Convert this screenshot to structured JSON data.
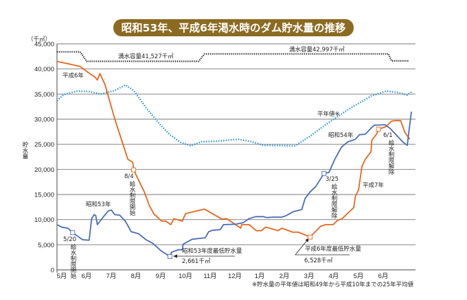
{
  "chart_data": {
    "type": "line",
    "title": "昭和53年、平成6年渇水時のダム貯水量の推移",
    "ylabel": "貯水量",
    "yunit": "（千㎥）",
    "ylim": [
      0,
      45000
    ],
    "yticks": [
      "0",
      "5,000",
      "10,000",
      "15,000",
      "20,000",
      "25,000",
      "30,000",
      "35,000",
      "40,000",
      "45,000"
    ],
    "xticks": [
      "5月",
      "6月",
      "7月",
      "8月",
      "9月",
      "10月",
      "11月",
      "12月",
      "1月",
      "2月",
      "3月",
      "4月",
      "5月",
      "6月"
    ],
    "grid": true,
    "colors": {
      "heisei": "#e8661a",
      "showa": "#4a6bb8",
      "average": "#1e8ad8",
      "capacity": "#111111",
      "title_bg": "#8b6a22"
    },
    "series": [
      {
        "key": "heisei",
        "style": "solid",
        "labels": [
          "平成6年",
          "平成7年"
        ],
        "points": [
          [
            "5/1",
            41500
          ],
          [
            "5/15",
            41000
          ],
          [
            "5/29",
            40500
          ],
          [
            "6/8",
            39400
          ],
          [
            "6/14",
            38700
          ],
          [
            "6/17",
            38400
          ],
          [
            "6/20",
            37800
          ],
          [
            "6/23",
            39100
          ],
          [
            "6/29",
            37000
          ],
          [
            "7/11",
            30100
          ],
          [
            "7/27",
            22000
          ],
          [
            "8/3",
            21400
          ],
          [
            "8/4",
            19900
          ],
          [
            "8/17",
            15500
          ],
          [
            "8/23",
            12800
          ],
          [
            "8/29",
            11000
          ],
          [
            "9/1",
            10800
          ],
          [
            "9/8",
            9700
          ],
          [
            "9/13",
            9700
          ],
          [
            "9/19",
            9000
          ],
          [
            "9/23",
            10200
          ],
          [
            "9/29",
            9900
          ],
          [
            "10/3",
            9700
          ],
          [
            "10/7",
            11200
          ],
          [
            "10/30",
            12100
          ],
          [
            "11/20",
            10200
          ],
          [
            "11/23",
            10100
          ],
          [
            "11/27",
            10200
          ],
          [
            "12/14",
            8300
          ],
          [
            "12/15",
            9000
          ],
          [
            "12/24",
            9000
          ],
          [
            "1/3",
            7800
          ],
          [
            "1/9",
            7800
          ],
          [
            "1/14",
            8500
          ],
          [
            "1/19",
            8300
          ],
          [
            "1/29",
            7800
          ],
          [
            "2/4",
            8300
          ],
          [
            "2/17",
            7500
          ],
          [
            "2/24",
            7500
          ],
          [
            "3/8",
            6528
          ],
          [
            "3/21",
            8700
          ],
          [
            "3/27",
            9000
          ],
          [
            "4/6",
            9000
          ],
          [
            "4/11",
            9800
          ],
          [
            "4/17",
            10200
          ],
          [
            "5/1",
            12400
          ],
          [
            "5/3",
            14600
          ],
          [
            "5/7",
            16000
          ],
          [
            "5/11",
            20600
          ],
          [
            "5/15",
            22000
          ],
          [
            "5/22",
            23500
          ],
          [
            "5/23",
            25800
          ],
          [
            "5/29",
            27100
          ],
          [
            "6/1",
            28000
          ],
          [
            "6/10",
            28500
          ],
          [
            "6/17",
            29600
          ],
          [
            "6/20",
            29700
          ],
          [
            "6/28",
            29700
          ],
          [
            "7/3",
            27400
          ],
          [
            "7/9",
            26000
          ]
        ]
      },
      {
        "key": "showa",
        "style": "solid",
        "labels": [
          "昭和53年",
          "昭和54年"
        ],
        "points": [
          [
            "5/1",
            9000
          ],
          [
            "5/7",
            8500
          ],
          [
            "5/14",
            8300
          ],
          [
            "5/20",
            7400
          ],
          [
            "6/2",
            6000
          ],
          [
            "6/10",
            5900
          ],
          [
            "6/13",
            10200
          ],
          [
            "6/16",
            11000
          ],
          [
            "6/18",
            10800
          ],
          [
            "6/20",
            9000
          ],
          [
            "6/27",
            10500
          ],
          [
            "7/3",
            11700
          ],
          [
            "7/7",
            11900
          ],
          [
            "7/11",
            11000
          ],
          [
            "7/17",
            10900
          ],
          [
            "7/24",
            9700
          ],
          [
            "8/1",
            7600
          ],
          [
            "8/10",
            7200
          ],
          [
            "8/19",
            6000
          ],
          [
            "8/27",
            5300
          ],
          [
            "9/8",
            3700
          ],
          [
            "9/18",
            2661
          ],
          [
            "9/20",
            3500
          ],
          [
            "9/28",
            4000
          ],
          [
            "10/3",
            4000
          ],
          [
            "10/4",
            5100
          ],
          [
            "10/15",
            6100
          ],
          [
            "11/1",
            6400
          ],
          [
            "11/5",
            7600
          ],
          [
            "11/10",
            7900
          ],
          [
            "11/19",
            8000
          ],
          [
            "11/23",
            9000
          ],
          [
            "12/8",
            9100
          ],
          [
            "12/17",
            9400
          ],
          [
            "12/24",
            10200
          ],
          [
            "1/2",
            10600
          ],
          [
            "1/11",
            10600
          ],
          [
            "1/16",
            10400
          ],
          [
            "1/23",
            10500
          ],
          [
            "2/4",
            10500
          ],
          [
            "2/9",
            10800
          ],
          [
            "2/18",
            11600
          ],
          [
            "2/28",
            12000
          ],
          [
            "3/2",
            14200
          ],
          [
            "3/8",
            15500
          ],
          [
            "3/15",
            16600
          ],
          [
            "3/25",
            19200
          ],
          [
            "4/1",
            19400
          ],
          [
            "4/8",
            22000
          ],
          [
            "4/16",
            24400
          ],
          [
            "4/24",
            25500
          ],
          [
            "5/3",
            26000
          ],
          [
            "5/8",
            26900
          ],
          [
            "5/15",
            27000
          ],
          [
            "5/22",
            28200
          ],
          [
            "5/26",
            28800
          ],
          [
            "6/9",
            28900
          ],
          [
            "6/15",
            28200
          ],
          [
            "7/1",
            25400
          ],
          [
            "7/6",
            24800
          ],
          [
            "7/11",
            31500
          ]
        ]
      },
      {
        "key": "average",
        "style": "dotted",
        "labels": [
          "平年値※"
        ],
        "points": [
          [
            "5/1",
            33700
          ],
          [
            "5/9",
            34900
          ],
          [
            "5/26",
            35600
          ],
          [
            "6/10",
            35500
          ],
          [
            "6/24",
            35000
          ],
          [
            "7/11",
            35700
          ],
          [
            "7/24",
            36800
          ],
          [
            "8/4",
            35700
          ],
          [
            "8/19",
            32300
          ],
          [
            "9/3",
            29500
          ],
          [
            "9/18",
            26900
          ],
          [
            "10/1",
            25400
          ],
          [
            "10/13",
            24700
          ],
          [
            "10/26",
            25500
          ],
          [
            "11/13",
            25600
          ],
          [
            "12/11",
            26000
          ],
          [
            "12/28",
            25500
          ],
          [
            "1/11",
            24800
          ],
          [
            "2/20",
            24700
          ],
          [
            "3/7",
            26500
          ],
          [
            "3/26",
            28800
          ],
          [
            "4/24",
            31900
          ],
          [
            "5/22",
            34600
          ],
          [
            "6/11",
            35600
          ],
          [
            "6/25",
            35300
          ],
          [
            "7/6",
            34800
          ],
          [
            "7/12",
            35500
          ]
        ]
      },
      {
        "key": "capacity",
        "style": "dotted",
        "labels": [
          "満水容量41,527千㎥",
          "満水容量42,997千㎥"
        ],
        "points": [
          [
            "5/1",
            43400
          ],
          [
            "5/29",
            43400
          ],
          [
            "6/7",
            41527
          ],
          [
            "10/23",
            41527
          ],
          [
            "10/30",
            42997
          ],
          [
            "6/13",
            42997
          ],
          [
            "6/17",
            41600
          ],
          [
            "7/8",
            41600
          ]
        ]
      }
    ],
    "events": [
      {
        "key": "e520",
        "series": "showa",
        "date": "5/20",
        "value": 7400,
        "label": "5/20",
        "text": "給水制限開始"
      },
      {
        "key": "e84",
        "series": "heisei",
        "date": "8/4",
        "value": 19900,
        "label": "8/4",
        "text": "給水制限開始"
      },
      {
        "key": "e325",
        "series": "showa",
        "date": "3/25",
        "value": 19200,
        "label": "3/25",
        "text": "給水制限解除"
      },
      {
        "key": "e61",
        "series": "heisei",
        "date": "6/1",
        "value": 28000,
        "label": "6/1",
        "text": "給水制限解除"
      },
      {
        "key": "minS",
        "series": "showa",
        "date": "9/18",
        "value": 2661,
        "label": "昭和53年度最低貯水量",
        "text": "2,661千㎥"
      },
      {
        "key": "minH",
        "series": "heisei",
        "date": "3/8",
        "value": 6528,
        "label": "平成6年度最低貯水量",
        "text": "6,528千㎥"
      }
    ],
    "footnote": "※貯水量の平年値は昭和49年から平成10年までの25年平均値"
  }
}
